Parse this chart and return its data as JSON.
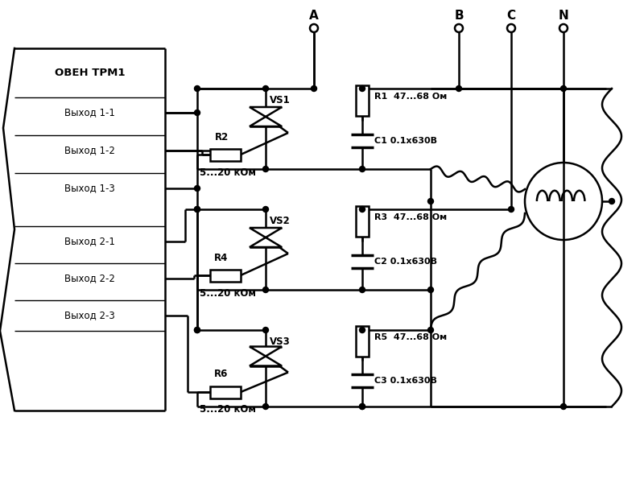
{
  "bg_color": "#ffffff",
  "device_label": "ОВЕН ТРМ1",
  "outputs": [
    "Выход 1-1",
    "Выход 1-2",
    "Выход 1-3",
    "Выход 2-1",
    "Выход 2-2",
    "Выход 2-3"
  ],
  "vs_labels": [
    "VS1",
    "VS2",
    "VS3"
  ],
  "r_gate_labels": [
    "R2",
    "R4",
    "R6"
  ],
  "r_snubber_labels": [
    "R1  47...68 Ом",
    "R3  47...68 Ом",
    "R5  47...68 Ом"
  ],
  "c_snubber_labels": [
    "C1 0.1х630В",
    "C2 0.1х630В",
    "C3 0.1х630В"
  ],
  "r_value_label": "5...20 кОм",
  "phase_labels": [
    "A",
    "B",
    "C",
    "N"
  ]
}
